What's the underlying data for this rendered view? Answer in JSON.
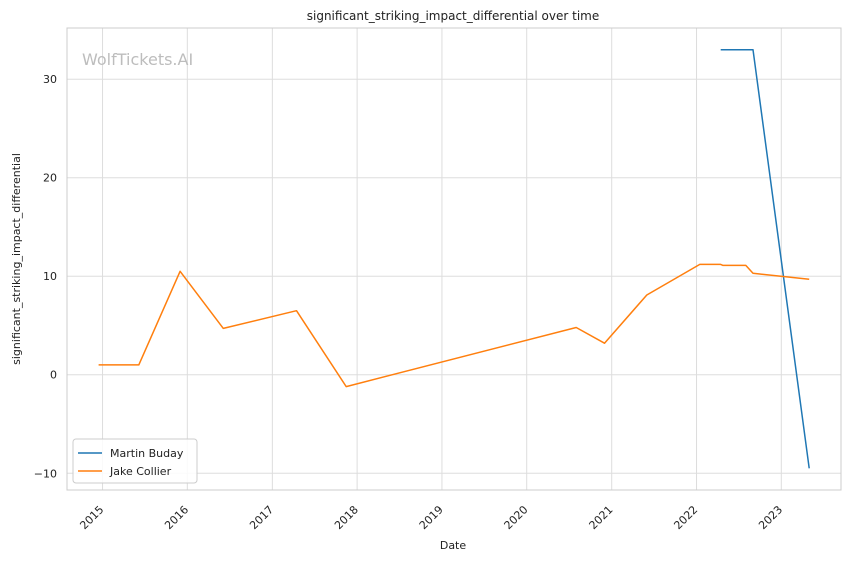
{
  "chart_data": {
    "type": "line",
    "title": "significant_striking_impact_differential over time",
    "xlabel": "Date",
    "ylabel": "significant_striking_impact_differential",
    "watermark": "WolfTickets.AI",
    "x_ticks": [
      "2015",
      "2016",
      "2017",
      "2018",
      "2019",
      "2020",
      "2021",
      "2022",
      "2023"
    ],
    "y_ticks": [
      -10,
      0,
      10,
      20,
      30
    ],
    "xlim": [
      "2014-08-01",
      "2023-09-15"
    ],
    "ylim": [
      -11.7,
      35.2
    ],
    "grid": true,
    "legend_position": "lower-left",
    "series": [
      {
        "name": "Martin Buday",
        "color": "#1f77b4",
        "x": [
          "2022-04-15",
          "2022-09-01",
          "2023-05-01"
        ],
        "y": [
          33.0,
          33.0,
          -9.5
        ]
      },
      {
        "name": "Jake Collier",
        "color": "#ff7f0e",
        "x": [
          "2014-12-15",
          "2015-06-06",
          "2015-12-01",
          "2016-06-04",
          "2017-04-15",
          "2017-11-15",
          "2020-08-01",
          "2020-12-01",
          "2021-06-01",
          "2022-01-15",
          "2022-04-15",
          "2022-04-25",
          "2022-08-01",
          "2022-09-01",
          "2023-05-01"
        ],
        "y": [
          1.0,
          1.0,
          10.5,
          4.7,
          6.5,
          -1.2,
          4.8,
          3.2,
          8.1,
          11.2,
          11.2,
          11.1,
          11.1,
          10.3,
          9.7
        ]
      }
    ]
  }
}
